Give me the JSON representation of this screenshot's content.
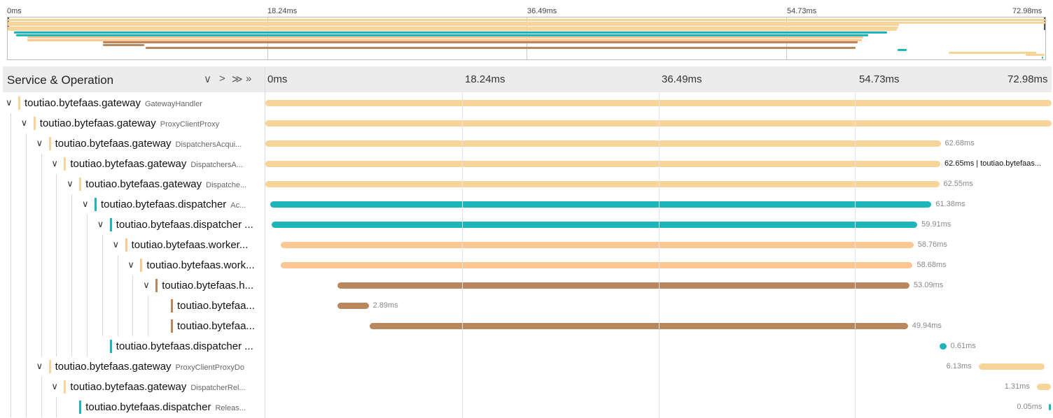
{
  "colors": {
    "gateway": "#f7d59a",
    "dispatcher": "#1cb5b9",
    "worker": "#fcc792",
    "h": "#b9875e"
  },
  "minimap": {
    "ticks": [
      "0ms",
      "18.24ms",
      "36.49ms",
      "54.73ms",
      "72.98ms"
    ]
  },
  "header": {
    "title": "Service & Operation",
    "buttons": [
      "∨",
      ">",
      "≫",
      "»"
    ],
    "ticks": [
      "0ms",
      "18.24ms",
      "36.49ms",
      "54.73ms",
      "72.98ms"
    ]
  },
  "timeline": {
    "total_ms": 72.98
  },
  "rows": [
    {
      "depth": 0,
      "toggle": "∨",
      "service": "toutiao.bytefaas.gateway",
      "op": "GatewayHandler",
      "kind": "gateway",
      "start": 0.0,
      "duration": 72.98,
      "label": ""
    },
    {
      "depth": 1,
      "toggle": "∨",
      "service": "toutiao.bytefaas.gateway",
      "op": "ProxyClientProxy",
      "kind": "gateway",
      "start": 0.0,
      "duration": 72.98,
      "label": ""
    },
    {
      "depth": 2,
      "toggle": "∨",
      "service": "toutiao.bytefaas.gateway",
      "op": "DispatchersAcqui...",
      "kind": "gateway",
      "start": 0.0,
      "duration": 62.68,
      "label": "62.68ms"
    },
    {
      "depth": 3,
      "toggle": "∨",
      "service": "toutiao.bytefaas.gateway",
      "op": "DispatchersA...",
      "kind": "gateway",
      "start": 0.0,
      "duration": 62.65,
      "label": "62.65ms | toutiao.bytefaas..."
    },
    {
      "depth": 4,
      "toggle": "∨",
      "service": "toutiao.bytefaas.gateway",
      "op": "Dispatche...",
      "kind": "gateway",
      "start": 0.0,
      "duration": 62.55,
      "label": "62.55ms"
    },
    {
      "depth": 5,
      "toggle": "∨",
      "service": "toutiao.bytefaas.dispatcher",
      "op": "Ac...",
      "kind": "dispatcher",
      "start": 0.45,
      "duration": 61.38,
      "label": "61.38ms"
    },
    {
      "depth": 6,
      "toggle": "∨",
      "service": "toutiao.bytefaas.dispatcher ...",
      "op": "",
      "kind": "dispatcher",
      "start": 0.6,
      "duration": 59.91,
      "label": "59.91ms"
    },
    {
      "depth": 7,
      "toggle": "∨",
      "service": "toutiao.bytefaas.worker...",
      "op": "",
      "kind": "worker",
      "start": 1.4,
      "duration": 58.76,
      "label": "58.76ms"
    },
    {
      "depth": 8,
      "toggle": "∨",
      "service": "toutiao.bytefaas.work...",
      "op": "",
      "kind": "worker",
      "start": 1.4,
      "duration": 58.68,
      "label": "58.68ms"
    },
    {
      "depth": 9,
      "toggle": "∨",
      "service": "toutiao.bytefaas.h...",
      "op": "",
      "kind": "h",
      "start": 6.7,
      "duration": 53.09,
      "label": "53.09ms"
    },
    {
      "depth": 10,
      "toggle": "",
      "service": "toutiao.bytefaa...",
      "op": "",
      "kind": "h",
      "start": 6.7,
      "duration": 2.89,
      "label": "2.89ms"
    },
    {
      "depth": 10,
      "toggle": "",
      "service": "toutiao.bytefaa...",
      "op": "",
      "kind": "h",
      "start": 9.7,
      "duration": 49.94,
      "label": "49.94ms"
    },
    {
      "depth": 6,
      "toggle": "",
      "service": "toutiao.bytefaas.dispatcher ...",
      "op": "",
      "kind": "dispatcher",
      "start": 62.6,
      "duration": 0.61,
      "label": "0.61ms"
    },
    {
      "depth": 2,
      "toggle": "∨",
      "service": "toutiao.bytefaas.gateway",
      "op": "ProxyClientProxyDo",
      "kind": "gateway",
      "start": 66.2,
      "duration": 6.13,
      "label": "6.13ms"
    },
    {
      "depth": 3,
      "toggle": "∨",
      "service": "toutiao.bytefaas.gateway",
      "op": "DispatcherRel...",
      "kind": "gateway",
      "start": 71.6,
      "duration": 1.31,
      "label": "1.31ms"
    },
    {
      "depth": 4,
      "toggle": "",
      "service": "toutiao.bytefaas.dispatcher",
      "op": "Releas...",
      "kind": "dispatcher",
      "start": 72.75,
      "duration": 0.05,
      "label": "0.05ms"
    }
  ]
}
